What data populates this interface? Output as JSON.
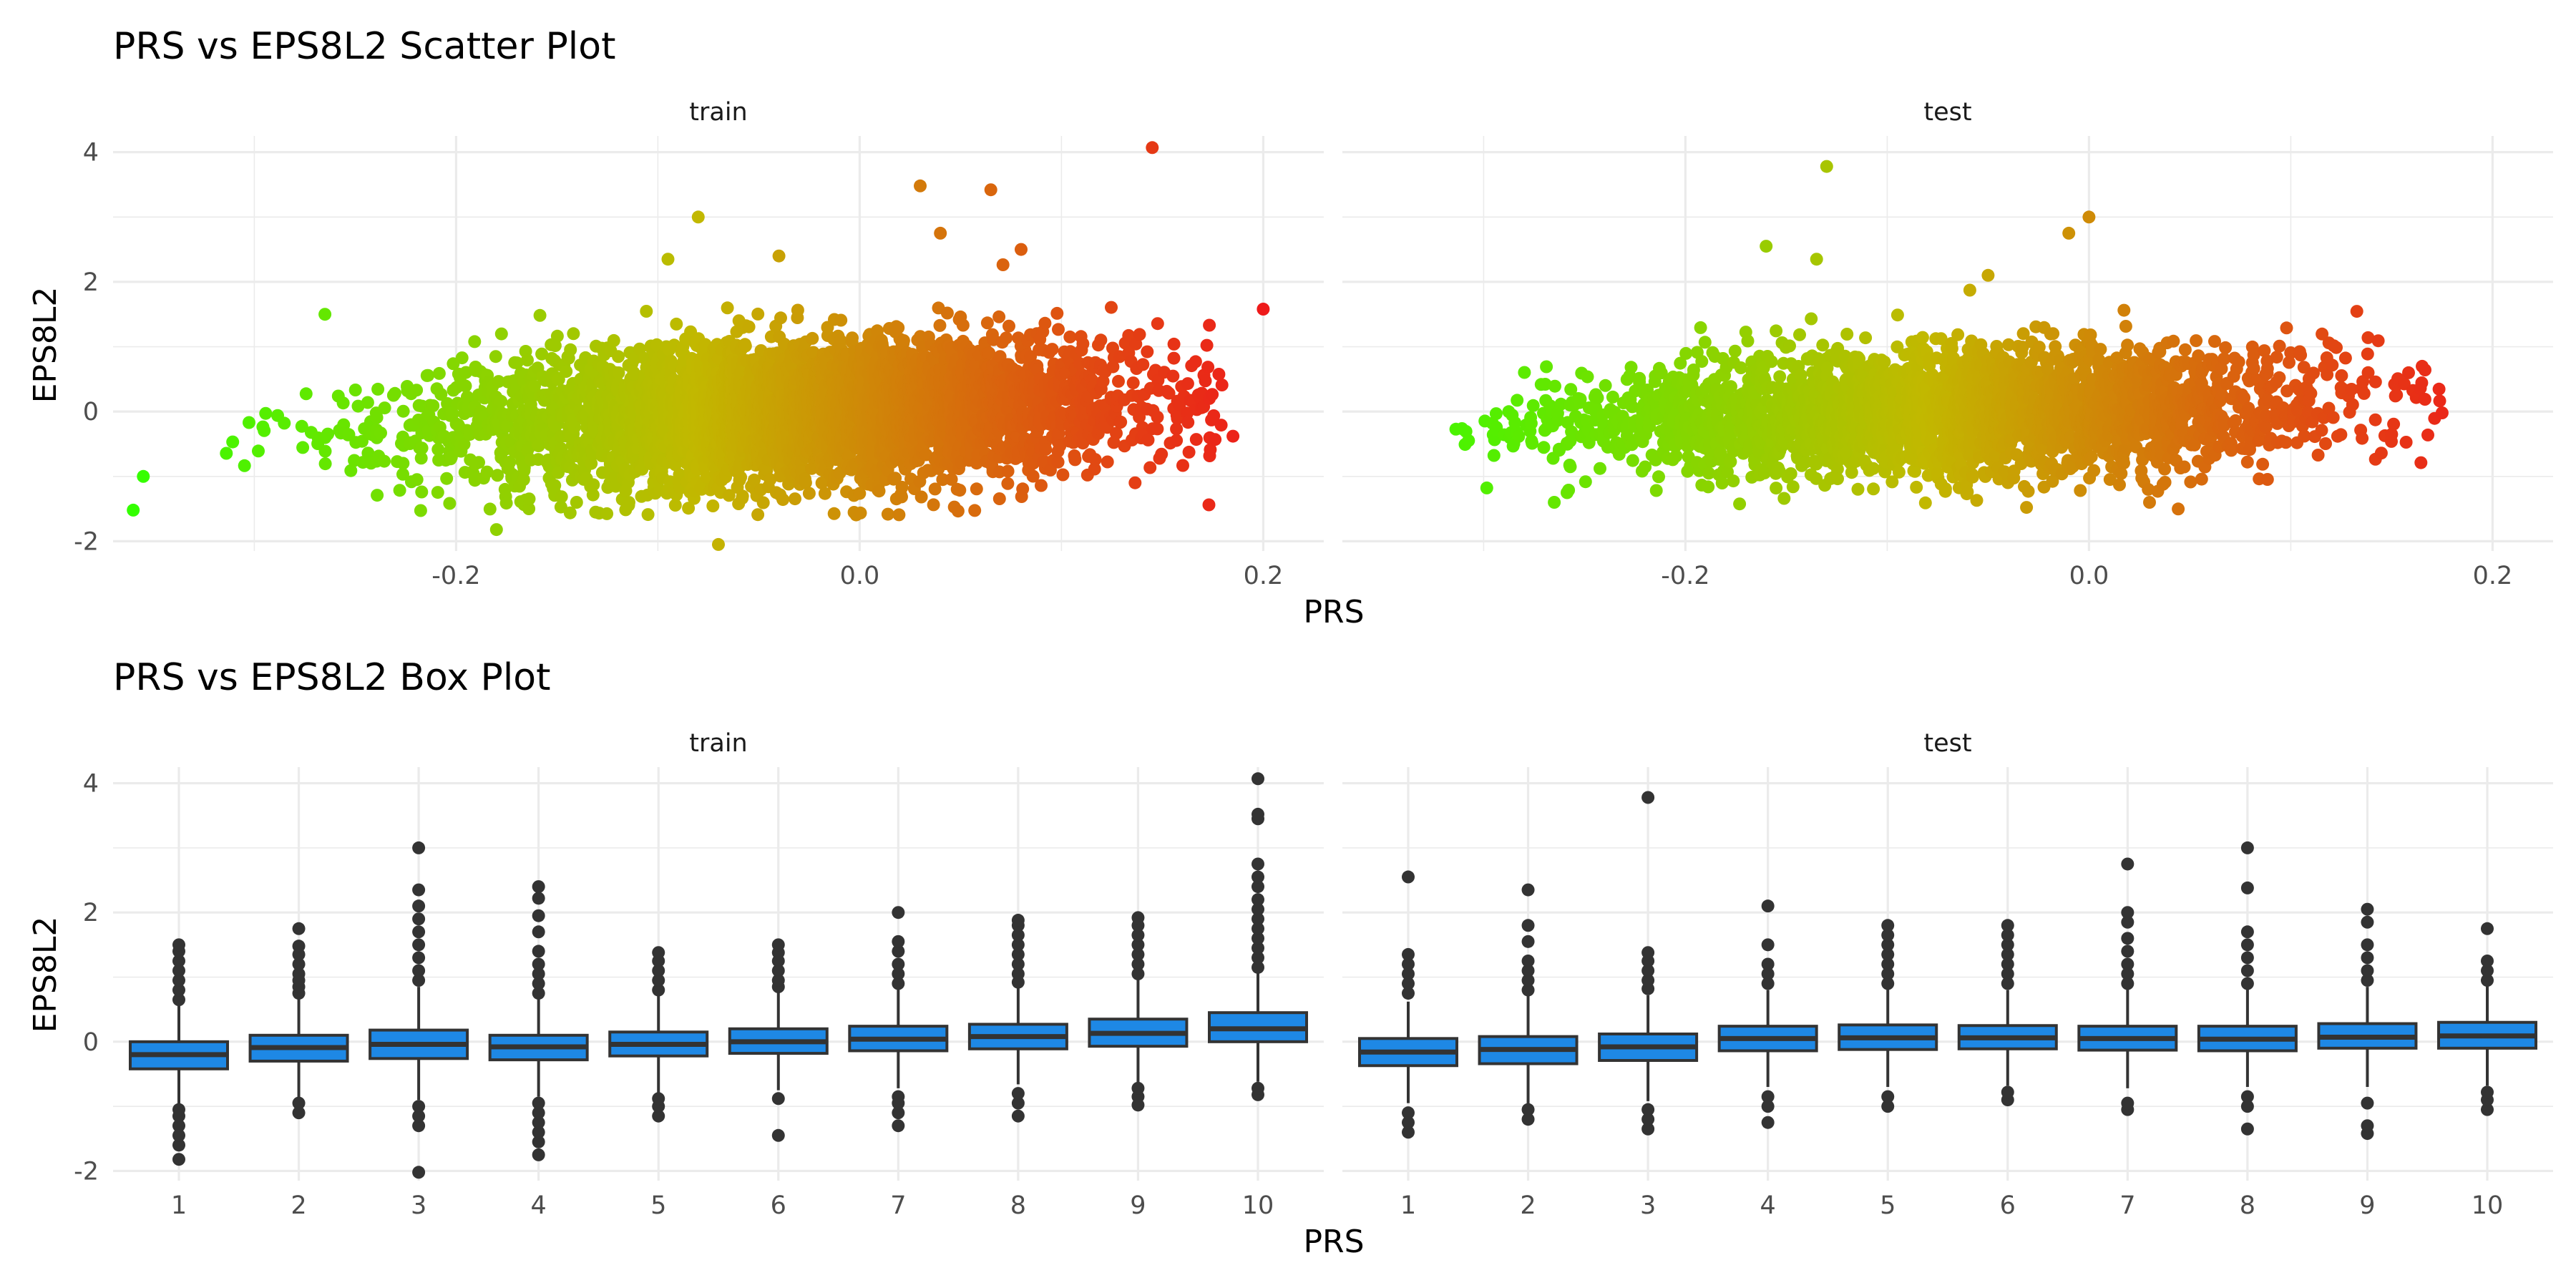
{
  "chart_data": [
    {
      "type": "scatter",
      "title": "PRS vs EPS8L2 Scatter Plot",
      "xlabel": "PRS",
      "ylabel": "EPS8L2",
      "x_ticks": [
        -0.2,
        0.0,
        0.2
      ],
      "x_tick_labels": [
        "-0.2",
        "0.0",
        "0.2"
      ],
      "y_ticks": [
        -2,
        0,
        2,
        4
      ],
      "y_tick_labels": [
        "-2",
        "0",
        "2",
        "4"
      ],
      "xlim": [
        -0.37,
        0.23
      ],
      "ylim": [
        -2.15,
        4.25
      ],
      "grid": true,
      "color_scale": {
        "low": "#33ff00",
        "mid": "#c2b800",
        "high": "#ee1a1a"
      },
      "panels": [
        {
          "name": "train",
          "point_count_description": "dense cloud",
          "cloud": {
            "x_mean": -0.03,
            "x_sd": 0.085,
            "x_min": -0.33,
            "x_max": 0.18,
            "slope": 2.2,
            "noise_sd": 0.42
          },
          "outliers": [
            {
              "x": -0.36,
              "y": -1.52
            },
            {
              "x": -0.355,
              "y": -1.0
            },
            {
              "x": -0.265,
              "y": 1.5
            },
            {
              "x": -0.18,
              "y": -1.82
            },
            {
              "x": -0.08,
              "y": 3.0
            },
            {
              "x": -0.07,
              "y": -2.05
            },
            {
              "x": -0.095,
              "y": 2.35
            },
            {
              "x": -0.04,
              "y": 2.4
            },
            {
              "x": 0.03,
              "y": 3.48
            },
            {
              "x": 0.065,
              "y": 3.42
            },
            {
              "x": 0.145,
              "y": 4.07
            },
            {
              "x": 0.2,
              "y": 1.58
            },
            {
              "x": 0.185,
              "y": -0.38
            },
            {
              "x": 0.08,
              "y": 2.5
            },
            {
              "x": 0.04,
              "y": 2.75
            }
          ]
        },
        {
          "name": "test",
          "point_count_description": "dense cloud",
          "cloud": {
            "x_mean": -0.07,
            "x_sd": 0.095,
            "x_min": -0.315,
            "x_max": 0.175,
            "slope": 1.6,
            "noise_sd": 0.38
          },
          "outliers": [
            {
              "x": -0.13,
              "y": 3.78
            },
            {
              "x": -0.16,
              "y": 2.55
            },
            {
              "x": -0.135,
              "y": 2.35
            },
            {
              "x": -0.05,
              "y": 2.1
            },
            {
              "x": -0.01,
              "y": 2.75
            },
            {
              "x": 0.0,
              "y": 3.0
            },
            {
              "x": 0.175,
              "y": -0.02
            },
            {
              "x": -0.265,
              "y": -1.4
            },
            {
              "x": 0.15,
              "y": -0.35
            },
            {
              "x": 0.03,
              "y": -1.4
            }
          ]
        }
      ]
    },
    {
      "type": "box",
      "title": "PRS vs EPS8L2 Box Plot",
      "xlabel": "PRS",
      "ylabel": "EPS8L2",
      "categories": [
        "1",
        "2",
        "3",
        "4",
        "5",
        "6",
        "7",
        "8",
        "9",
        "10"
      ],
      "y_ticks": [
        -2,
        0,
        2,
        4
      ],
      "y_tick_labels": [
        "-2",
        "0",
        "2",
        "4"
      ],
      "ylim": [
        -2.15,
        4.25
      ],
      "grid": true,
      "box_fill": "#1e88e5",
      "box_stroke": "#333333",
      "panels": [
        {
          "name": "train",
          "boxes": [
            {
              "q1": -0.42,
              "median": -0.2,
              "q3": 0.0,
              "whisker_low": -0.98,
              "whisker_high": 0.58,
              "outliers": [
                -1.82,
                -1.6,
                -1.45,
                -1.3,
                -1.15,
                -1.05,
                0.65,
                0.8,
                0.95,
                1.1,
                1.25,
                1.4,
                1.5
              ]
            },
            {
              "q1": -0.3,
              "median": -0.09,
              "q3": 0.1,
              "whisker_low": -0.88,
              "whisker_high": 0.68,
              "outliers": [
                -1.1,
                -0.95,
                0.75,
                0.85,
                0.95,
                1.05,
                1.2,
                1.35,
                1.48,
                1.75
              ]
            },
            {
              "q1": -0.26,
              "median": -0.04,
              "q3": 0.18,
              "whisker_low": -0.9,
              "whisker_high": 0.85,
              "outliers": [
                -2.02,
                -1.3,
                -1.15,
                -1.0,
                0.95,
                1.1,
                1.3,
                1.5,
                1.7,
                1.9,
                2.1,
                2.35,
                3.0
              ]
            },
            {
              "q1": -0.28,
              "median": -0.08,
              "q3": 0.1,
              "whisker_low": -0.85,
              "whisker_high": 0.68,
              "outliers": [
                -1.75,
                -1.55,
                -1.4,
                -1.25,
                -1.1,
                -0.95,
                0.75,
                0.9,
                1.05,
                1.2,
                1.4,
                1.7,
                1.95,
                2.22,
                2.4
              ]
            },
            {
              "q1": -0.22,
              "median": -0.04,
              "q3": 0.15,
              "whisker_low": -0.8,
              "whisker_high": 0.72,
              "outliers": [
                -1.15,
                -1.0,
                -0.88,
                0.8,
                0.95,
                1.1,
                1.25,
                1.38
              ]
            },
            {
              "q1": -0.18,
              "median": 0.0,
              "q3": 0.2,
              "whisker_low": -0.75,
              "whisker_high": 0.78,
              "outliers": [
                -1.45,
                -0.88,
                0.85,
                0.95,
                1.1,
                1.25,
                1.38,
                1.5
              ]
            },
            {
              "q1": -0.14,
              "median": 0.04,
              "q3": 0.24,
              "whisker_low": -0.72,
              "whisker_high": 0.82,
              "outliers": [
                -1.3,
                -1.1,
                -0.95,
                -0.85,
                0.9,
                1.05,
                1.2,
                1.4,
                1.55,
                2.0
              ]
            },
            {
              "q1": -0.11,
              "median": 0.08,
              "q3": 0.27,
              "whisker_low": -0.66,
              "whisker_high": 0.85,
              "outliers": [
                -1.15,
                -0.95,
                -0.8,
                0.92,
                1.05,
                1.2,
                1.35,
                1.5,
                1.65,
                1.8,
                1.88
              ]
            },
            {
              "q1": -0.07,
              "median": 0.13,
              "q3": 0.35,
              "whisker_low": -0.64,
              "whisker_high": 0.97,
              "outliers": [
                -0.98,
                -0.85,
                -0.72,
                1.05,
                1.2,
                1.35,
                1.5,
                1.65,
                1.8,
                1.92
              ]
            },
            {
              "q1": 0.0,
              "median": 0.2,
              "q3": 0.45,
              "whisker_low": -0.62,
              "whisker_high": 1.08,
              "outliers": [
                -0.82,
                -0.72,
                1.15,
                1.3,
                1.45,
                1.6,
                1.75,
                1.9,
                2.05,
                2.2,
                2.4,
                2.55,
                2.75,
                3.45,
                3.52,
                4.07
              ]
            }
          ]
        },
        {
          "name": "test",
          "boxes": [
            {
              "q1": -0.37,
              "median": -0.16,
              "q3": 0.05,
              "whisker_low": -0.95,
              "whisker_high": 0.62,
              "outliers": [
                -1.4,
                -1.25,
                -1.1,
                0.75,
                0.9,
                1.05,
                1.2,
                1.35,
                2.55
              ]
            },
            {
              "q1": -0.34,
              "median": -0.12,
              "q3": 0.08,
              "whisker_low": -0.98,
              "whisker_high": 0.72,
              "outliers": [
                -1.2,
                -1.05,
                0.8,
                0.95,
                1.1,
                1.25,
                1.55,
                1.8,
                2.35
              ]
            },
            {
              "q1": -0.29,
              "median": -0.08,
              "q3": 0.12,
              "whisker_low": -0.92,
              "whisker_high": 0.72,
              "outliers": [
                -1.35,
                -1.2,
                -1.05,
                0.82,
                0.95,
                1.1,
                1.25,
                1.38,
                3.78
              ]
            },
            {
              "q1": -0.14,
              "median": 0.05,
              "q3": 0.24,
              "whisker_low": -0.7,
              "whisker_high": 0.8,
              "outliers": [
                -1.25,
                -1.0,
                -0.85,
                0.9,
                1.05,
                1.2,
                1.5,
                2.1
              ]
            },
            {
              "q1": -0.12,
              "median": 0.06,
              "q3": 0.26,
              "whisker_low": -0.7,
              "whisker_high": 0.82,
              "outliers": [
                -1.0,
                -0.85,
                0.9,
                1.05,
                1.2,
                1.35,
                1.5,
                1.65,
                1.8
              ]
            },
            {
              "q1": -0.11,
              "median": 0.06,
              "q3": 0.25,
              "whisker_low": -0.68,
              "whisker_high": 0.8,
              "outliers": [
                -0.9,
                -0.78,
                0.9,
                1.05,
                1.2,
                1.35,
                1.5,
                1.65,
                1.8
              ]
            },
            {
              "q1": -0.13,
              "median": 0.05,
              "q3": 0.24,
              "whisker_low": -0.72,
              "whisker_high": 0.82,
              "outliers": [
                -1.05,
                -0.95,
                0.9,
                1.05,
                1.2,
                1.4,
                1.6,
                1.85,
                2.0,
                2.75
              ]
            },
            {
              "q1": -0.14,
              "median": 0.04,
              "q3": 0.24,
              "whisker_low": -0.7,
              "whisker_high": 0.82,
              "outliers": [
                -1.35,
                -1.0,
                -0.85,
                0.9,
                1.1,
                1.3,
                1.5,
                1.7,
                2.38,
                3.0
              ]
            },
            {
              "q1": -0.1,
              "median": 0.07,
              "q3": 0.28,
              "whisker_low": -0.7,
              "whisker_high": 0.85,
              "outliers": [
                -1.42,
                -1.3,
                -0.95,
                0.95,
                1.1,
                1.3,
                1.5,
                1.85,
                2.05
              ]
            },
            {
              "q1": -0.1,
              "median": 0.09,
              "q3": 0.3,
              "whisker_low": -0.68,
              "whisker_high": 0.88,
              "outliers": [
                -1.05,
                -0.9,
                -0.78,
                0.95,
                1.1,
                1.25,
                1.75
              ]
            }
          ]
        }
      ]
    }
  ]
}
